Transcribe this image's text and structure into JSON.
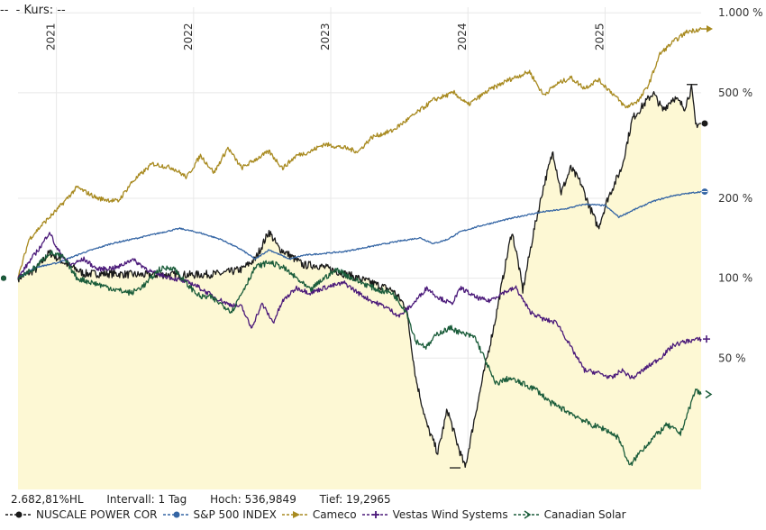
{
  "header": {
    "label": "Kurs:",
    "value": "--",
    "prefix": "--"
  },
  "chart_data": {
    "type": "line",
    "scale": "log",
    "x_ticks": [
      "2021",
      "2022",
      "2023",
      "2024",
      "2025"
    ],
    "y_ticks": [
      {
        "value": 50,
        "label": "50 %"
      },
      {
        "value": 100,
        "label": "100 %"
      },
      {
        "value": 200,
        "label": "200 %"
      },
      {
        "value": 500,
        "label": "500 %"
      },
      {
        "value": 1000,
        "label": "1.000 %"
      }
    ],
    "ylim": [
      16,
      1050
    ],
    "xlim": [
      2020.72,
      2025.7
    ],
    "tick_dates": [
      2021.0,
      2022.0,
      2023.0,
      2024.0,
      2025.0
    ],
    "series": [
      {
        "name": "NUSCALE POWER COR",
        "color": "#1a1a1a",
        "marker": "dot",
        "filled": true,
        "points": [
          [
            2020.72,
            100
          ],
          [
            2020.85,
            108
          ],
          [
            2020.95,
            125
          ],
          [
            2021.05,
            115
          ],
          [
            2021.2,
            104
          ],
          [
            2021.4,
            104
          ],
          [
            2021.6,
            103
          ],
          [
            2021.8,
            103
          ],
          [
            2022.0,
            103
          ],
          [
            2022.2,
            104
          ],
          [
            2022.35,
            108
          ],
          [
            2022.45,
            118
          ],
          [
            2022.55,
            150
          ],
          [
            2022.62,
            130
          ],
          [
            2022.7,
            122
          ],
          [
            2022.8,
            112
          ],
          [
            2022.9,
            112
          ],
          [
            2023.0,
            108
          ],
          [
            2023.15,
            102
          ],
          [
            2023.3,
            96
          ],
          [
            2023.45,
            90
          ],
          [
            2023.55,
            78
          ],
          [
            2023.62,
            42
          ],
          [
            2023.7,
            28
          ],
          [
            2023.78,
            22
          ],
          [
            2023.85,
            32
          ],
          [
            2023.92,
            24
          ],
          [
            2023.98,
            19.3
          ],
          [
            2024.05,
            30
          ],
          [
            2024.12,
            45
          ],
          [
            2024.2,
            70
          ],
          [
            2024.27,
            110
          ],
          [
            2024.32,
            150
          ],
          [
            2024.36,
            120
          ],
          [
            2024.4,
            90
          ],
          [
            2024.48,
            150
          ],
          [
            2024.55,
            220
          ],
          [
            2024.62,
            300
          ],
          [
            2024.68,
            210
          ],
          [
            2024.75,
            260
          ],
          [
            2024.82,
            230
          ],
          [
            2024.88,
            190
          ],
          [
            2024.95,
            155
          ],
          [
            2025.02,
            200
          ],
          [
            2025.12,
            260
          ],
          [
            2025.2,
            400
          ],
          [
            2025.28,
            450
          ],
          [
            2025.35,
            500
          ],
          [
            2025.42,
            430
          ],
          [
            2025.5,
            480
          ],
          [
            2025.58,
            440
          ],
          [
            2025.63,
            520
          ],
          [
            2025.66,
            380
          ],
          [
            2025.7,
            383
          ]
        ]
      },
      {
        "name": "S&P 500 INDEX",
        "color": "#3465a4",
        "marker": "dot",
        "points": [
          [
            2020.72,
            100
          ],
          [
            2020.85,
            110
          ],
          [
            2021.0,
            114
          ],
          [
            2021.2,
            125
          ],
          [
            2021.4,
            135
          ],
          [
            2021.6,
            142
          ],
          [
            2021.8,
            150
          ],
          [
            2021.9,
            154
          ],
          [
            2022.05,
            148
          ],
          [
            2022.2,
            140
          ],
          [
            2022.35,
            128
          ],
          [
            2022.45,
            118
          ],
          [
            2022.55,
            128
          ],
          [
            2022.7,
            118
          ],
          [
            2022.8,
            122
          ],
          [
            2022.95,
            124
          ],
          [
            2023.1,
            126
          ],
          [
            2023.3,
            132
          ],
          [
            2023.5,
            138
          ],
          [
            2023.65,
            142
          ],
          [
            2023.75,
            135
          ],
          [
            2023.85,
            140
          ],
          [
            2023.95,
            150
          ],
          [
            2024.1,
            158
          ],
          [
            2024.25,
            165
          ],
          [
            2024.4,
            172
          ],
          [
            2024.55,
            178
          ],
          [
            2024.7,
            182
          ],
          [
            2024.85,
            190
          ],
          [
            2025.0,
            188
          ],
          [
            2025.1,
            170
          ],
          [
            2025.2,
            180
          ],
          [
            2025.35,
            195
          ],
          [
            2025.5,
            205
          ],
          [
            2025.7,
            212
          ]
        ]
      },
      {
        "name": "Cameco",
        "color": "#a88a20",
        "marker": "arrow",
        "points": [
          [
            2020.72,
            100
          ],
          [
            2020.8,
            140
          ],
          [
            2020.9,
            160
          ],
          [
            2021.0,
            180
          ],
          [
            2021.15,
            220
          ],
          [
            2021.3,
            200
          ],
          [
            2021.45,
            195
          ],
          [
            2021.55,
            230
          ],
          [
            2021.7,
            270
          ],
          [
            2021.85,
            260
          ],
          [
            2021.95,
            240
          ],
          [
            2022.05,
            290
          ],
          [
            2022.15,
            250
          ],
          [
            2022.25,
            310
          ],
          [
            2022.35,
            260
          ],
          [
            2022.45,
            280
          ],
          [
            2022.55,
            300
          ],
          [
            2022.65,
            260
          ],
          [
            2022.75,
            290
          ],
          [
            2022.85,
            300
          ],
          [
            2022.95,
            320
          ],
          [
            2023.1,
            310
          ],
          [
            2023.2,
            300
          ],
          [
            2023.3,
            340
          ],
          [
            2023.45,
            360
          ],
          [
            2023.6,
            410
          ],
          [
            2023.75,
            470
          ],
          [
            2023.9,
            500
          ],
          [
            2024.0,
            450
          ],
          [
            2024.15,
            510
          ],
          [
            2024.3,
            560
          ],
          [
            2024.45,
            600
          ],
          [
            2024.55,
            490
          ],
          [
            2024.65,
            540
          ],
          [
            2024.75,
            570
          ],
          [
            2024.85,
            520
          ],
          [
            2024.95,
            560
          ],
          [
            2025.05,
            500
          ],
          [
            2025.15,
            440
          ],
          [
            2025.25,
            470
          ],
          [
            2025.32,
            540
          ],
          [
            2025.4,
            700
          ],
          [
            2025.5,
            780
          ],
          [
            2025.6,
            850
          ],
          [
            2025.7,
            870
          ]
        ]
      },
      {
        "name": "Vestas Wind Systems",
        "color": "#4b1a7a",
        "marker": "plus",
        "points": [
          [
            2020.72,
            100
          ],
          [
            2020.8,
            115
          ],
          [
            2020.9,
            135
          ],
          [
            2020.95,
            150
          ],
          [
            2021.0,
            130
          ],
          [
            2021.1,
            112
          ],
          [
            2021.2,
            118
          ],
          [
            2021.3,
            108
          ],
          [
            2021.45,
            110
          ],
          [
            2021.55,
            118
          ],
          [
            2021.7,
            105
          ],
          [
            2021.85,
            100
          ],
          [
            2022.0,
            95
          ],
          [
            2022.15,
            85
          ],
          [
            2022.25,
            80
          ],
          [
            2022.35,
            78
          ],
          [
            2022.42,
            65
          ],
          [
            2022.5,
            80
          ],
          [
            2022.58,
            68
          ],
          [
            2022.65,
            82
          ],
          [
            2022.75,
            92
          ],
          [
            2022.85,
            88
          ],
          [
            2022.95,
            92
          ],
          [
            2023.1,
            96
          ],
          [
            2023.2,
            88
          ],
          [
            2023.3,
            82
          ],
          [
            2023.4,
            78
          ],
          [
            2023.5,
            72
          ],
          [
            2023.6,
            80
          ],
          [
            2023.7,
            92
          ],
          [
            2023.78,
            85
          ],
          [
            2023.88,
            80
          ],
          [
            2023.95,
            92
          ],
          [
            2024.05,
            85
          ],
          [
            2024.15,
            82
          ],
          [
            2024.25,
            88
          ],
          [
            2024.35,
            92
          ],
          [
            2024.45,
            75
          ],
          [
            2024.55,
            70
          ],
          [
            2024.65,
            68
          ],
          [
            2024.75,
            55
          ],
          [
            2024.85,
            45
          ],
          [
            2024.95,
            44
          ],
          [
            2025.05,
            42
          ],
          [
            2025.12,
            45
          ],
          [
            2025.2,
            42
          ],
          [
            2025.3,
            46
          ],
          [
            2025.4,
            50
          ],
          [
            2025.5,
            56
          ],
          [
            2025.6,
            58
          ],
          [
            2025.7,
            59
          ]
        ]
      },
      {
        "name": "Canadian Solar",
        "color": "#1a5c3a",
        "marker": "arrow-open",
        "points": [
          [
            2020.72,
            100
          ],
          [
            2020.85,
            110
          ],
          [
            2020.95,
            125
          ],
          [
            2021.05,
            120
          ],
          [
            2021.15,
            100
          ],
          [
            2021.3,
            95
          ],
          [
            2021.45,
            90
          ],
          [
            2021.55,
            88
          ],
          [
            2021.65,
            95
          ],
          [
            2021.75,
            108
          ],
          [
            2021.85,
            110
          ],
          [
            2021.95,
            95
          ],
          [
            2022.05,
            85
          ],
          [
            2022.12,
            85
          ],
          [
            2022.2,
            80
          ],
          [
            2022.28,
            75
          ],
          [
            2022.35,
            88
          ],
          [
            2022.45,
            110
          ],
          [
            2022.55,
            115
          ],
          [
            2022.65,
            110
          ],
          [
            2022.75,
            100
          ],
          [
            2022.85,
            90
          ],
          [
            2022.95,
            100
          ],
          [
            2023.05,
            108
          ],
          [
            2023.15,
            100
          ],
          [
            2023.25,
            95
          ],
          [
            2023.35,
            90
          ],
          [
            2023.45,
            88
          ],
          [
            2023.55,
            75
          ],
          [
            2023.62,
            58
          ],
          [
            2023.7,
            55
          ],
          [
            2023.78,
            62
          ],
          [
            2023.88,
            65
          ],
          [
            2023.95,
            62
          ],
          [
            2024.05,
            60
          ],
          [
            2024.12,
            50
          ],
          [
            2024.2,
            40
          ],
          [
            2024.3,
            42
          ],
          [
            2024.4,
            40
          ],
          [
            2024.5,
            38
          ],
          [
            2024.6,
            34
          ],
          [
            2024.7,
            32
          ],
          [
            2024.8,
            30
          ],
          [
            2024.9,
            28
          ],
          [
            2025.0,
            27
          ],
          [
            2025.1,
            25
          ],
          [
            2025.18,
            19.5
          ],
          [
            2025.25,
            22
          ],
          [
            2025.35,
            25
          ],
          [
            2025.45,
            28
          ],
          [
            2025.55,
            26
          ],
          [
            2025.62,
            33
          ],
          [
            2025.66,
            38
          ],
          [
            2025.7,
            36.5
          ]
        ]
      }
    ]
  },
  "stats": {
    "perf": "2.682,81%HL",
    "interval": "Intervall: 1 Tag",
    "high": "Hoch: 536,9849",
    "low": "Tief: 19,2965"
  },
  "legend": [
    "NUSCALE POWER COR",
    "S&P 500 INDEX",
    "Cameco",
    "Vestas Wind Systems",
    "Canadian Solar"
  ]
}
